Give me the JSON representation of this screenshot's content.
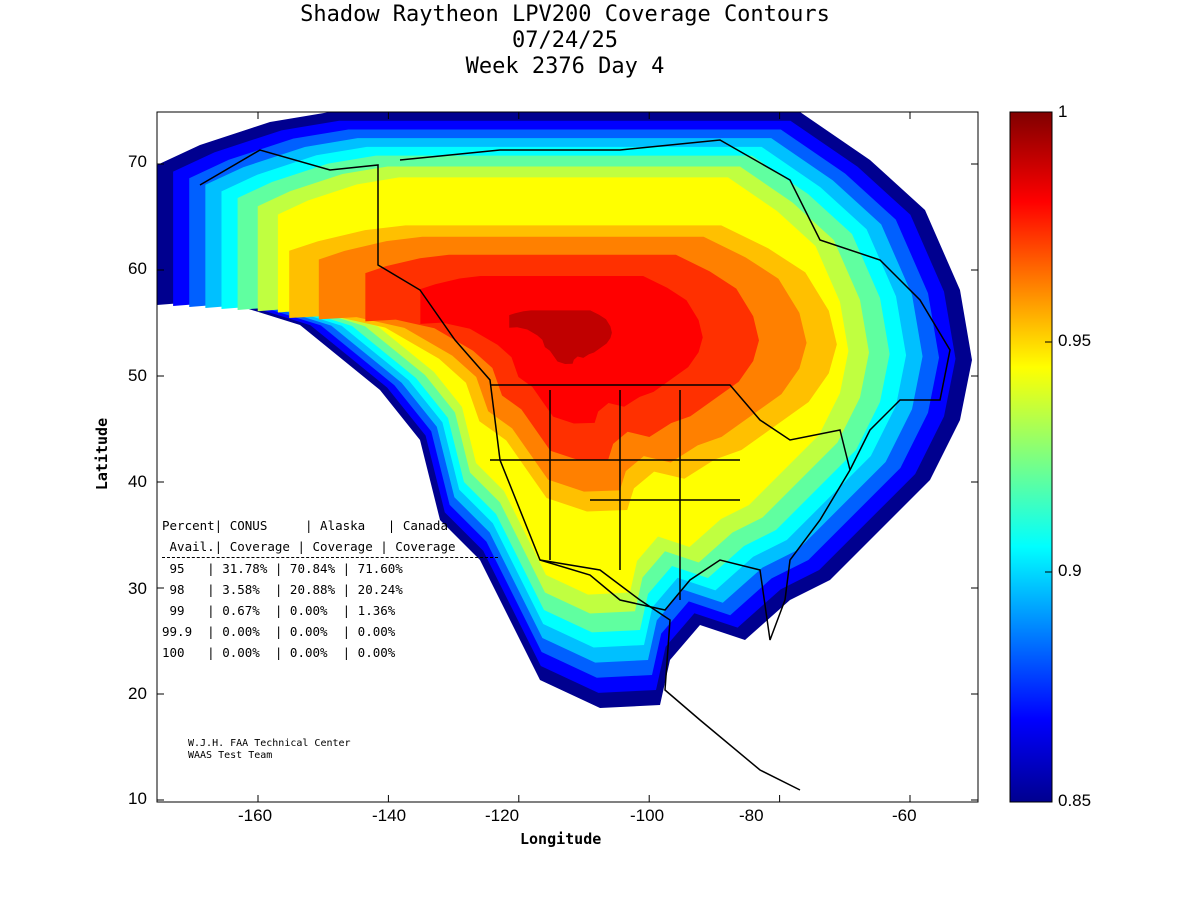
{
  "title": {
    "line1": "Shadow Raytheon LPV200 Coverage Contours",
    "line2": "07/24/25",
    "line3": "Week 2376 Day 4"
  },
  "chart_data": {
    "type": "heatmap",
    "title": "Shadow Raytheon LPV200 Coverage Contours",
    "xlabel": "Longitude",
    "ylabel": "Latitude",
    "xlim": [
      -175,
      -50
    ],
    "ylim": [
      10,
      75
    ],
    "xticks": [
      "-160",
      "-140",
      "-120",
      "-100",
      "-80",
      "-60"
    ],
    "yticks": [
      "10",
      "20",
      "30",
      "40",
      "50",
      "60",
      "70"
    ],
    "colorbar": {
      "range": [
        0.85,
        1
      ],
      "ticks": [
        "0.85",
        "0.9",
        "0.95",
        "1"
      ],
      "colormap": "jet"
    },
    "table": {
      "header1": [
        "Percent",
        "CONUS",
        "Alaska",
        "Canada"
      ],
      "header2": [
        "Avail.",
        "Coverage",
        "Coverage",
        "Coverage"
      ],
      "rows": [
        [
          "95",
          "31.78%",
          "70.84%",
          "71.60%"
        ],
        [
          "98",
          "3.58%",
          "20.88%",
          "20.24%"
        ],
        [
          "99",
          "0.67%",
          "0.00%",
          "1.36%"
        ],
        [
          "99.9",
          "0.00%",
          "0.00%",
          "0.00%"
        ],
        [
          "100",
          "0.00%",
          "0.00%",
          "0.00%"
        ]
      ]
    }
  },
  "credit": {
    "line1": "W.J.H. FAA Technical Center",
    "line2": "WAAS Test Team"
  }
}
